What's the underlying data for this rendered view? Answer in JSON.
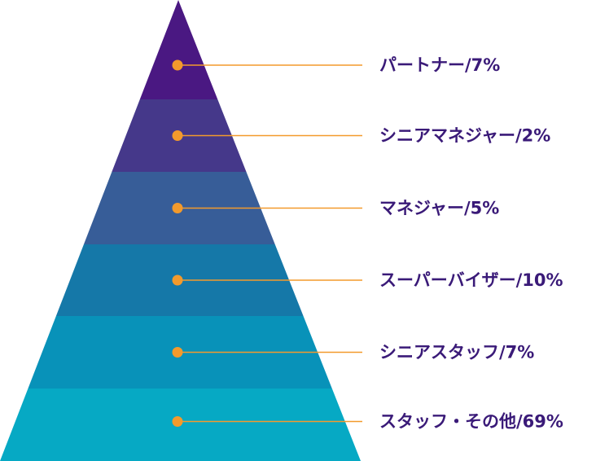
{
  "colors": {
    "label_text": "#3a1a78",
    "connector": "#f39a2c",
    "marker": "#f39a2c"
  },
  "tiers": [
    {
      "label": "パートナー/7%",
      "color": "#4a1882"
    },
    {
      "label": "シニアマネジャー/2%",
      "color": "#45388a"
    },
    {
      "label": "マネジャー/5%",
      "color": "#375d98"
    },
    {
      "label": "スーパーバイザー/10%",
      "color": "#1578a8"
    },
    {
      "label": "シニアスタッフ/7%",
      "color": "#0892b9"
    },
    {
      "label": "スタッフ・その他/69%",
      "color": "#06a9c4"
    }
  ]
}
